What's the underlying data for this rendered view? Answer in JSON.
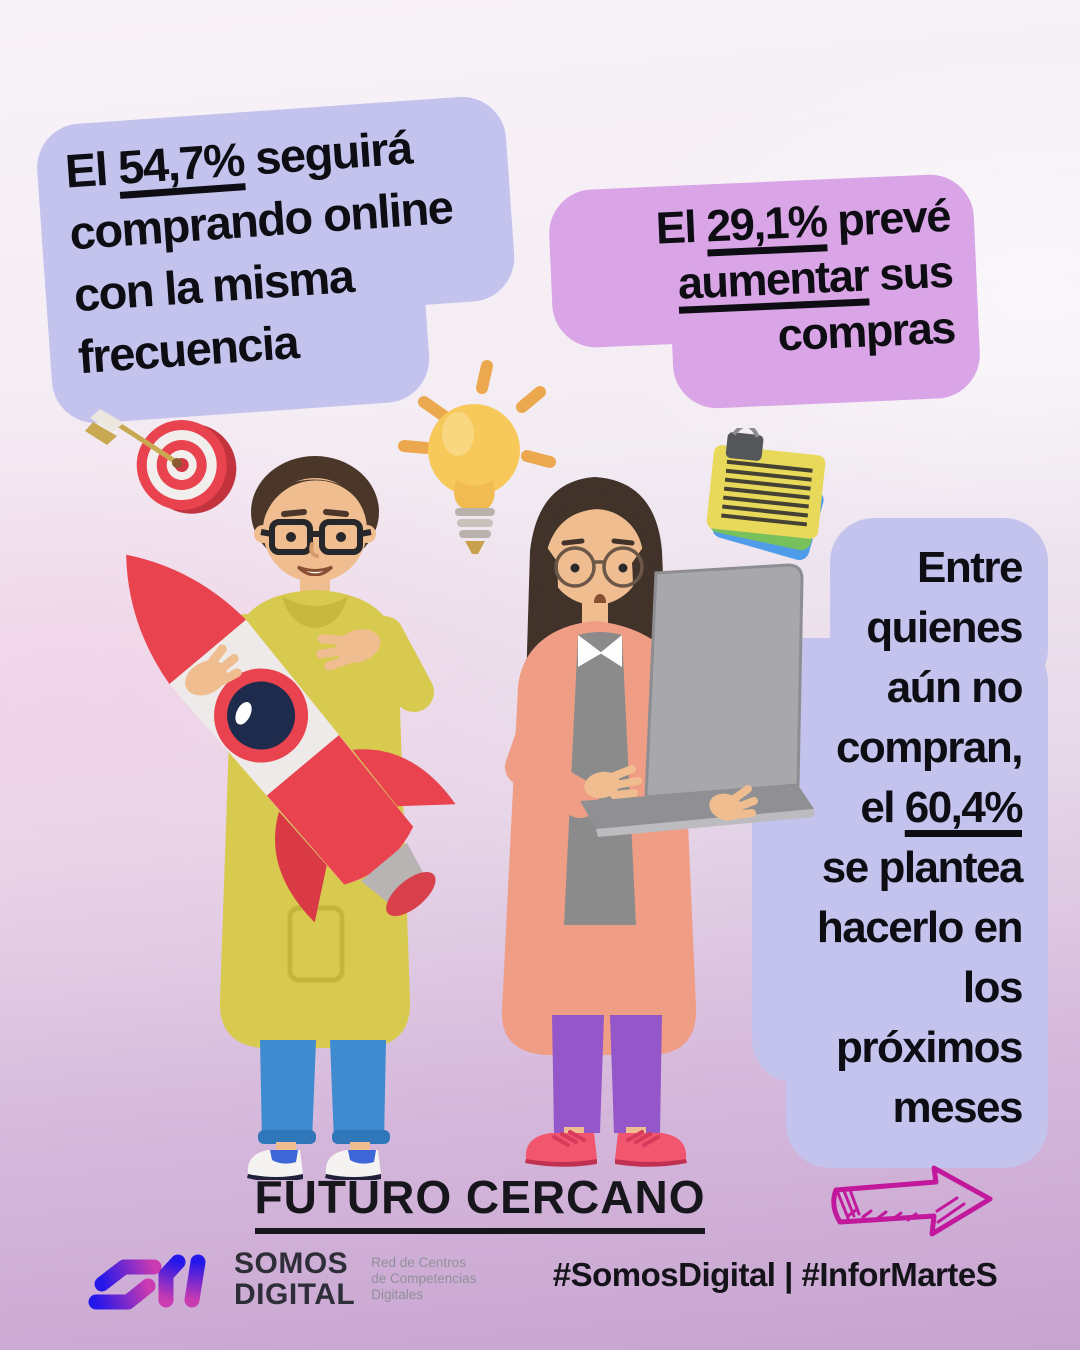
{
  "poster": {
    "bubbles": {
      "b1": {
        "lines": [
          [
            {
              "t": "El "
            },
            {
              "t": "54,7%",
              "u": true
            },
            {
              "t": " seguirá"
            }
          ],
          [
            {
              "t": "comprando online"
            }
          ],
          [
            {
              "t": "con la misma"
            }
          ],
          [
            {
              "t": "frecuencia"
            }
          ]
        ]
      },
      "b2": {
        "lines": [
          [
            {
              "t": "El "
            },
            {
              "t": "29,1%",
              "u": true
            },
            {
              "t": " prevé"
            }
          ],
          [
            {
              "t": "aumentar",
              "u": true
            },
            {
              "t": " sus"
            }
          ],
          [
            {
              "t": "compras"
            }
          ]
        ]
      },
      "b3": {
        "lines": [
          [
            {
              "t": "Entre"
            }
          ],
          [
            {
              "t": "quienes"
            }
          ],
          [
            {
              "t": "aún no"
            }
          ],
          [
            {
              "t": "compran,"
            }
          ],
          [
            {
              "t": "el "
            },
            {
              "t": "60,4%",
              "u": true
            }
          ],
          [
            {
              "t": "se plantea"
            }
          ],
          [
            {
              "t": "hacerlo en"
            }
          ],
          [
            {
              "t": "los"
            }
          ],
          [
            {
              "t": "próximos"
            }
          ],
          [
            {
              "t": "meses"
            }
          ]
        ]
      }
    },
    "title": "FUTURO CERCANO",
    "footer": {
      "brand_line1": "SOMOS",
      "brand_line2": "DIGITAL",
      "tagline": [
        "Red de Centros",
        "de Competencias",
        "Digitales"
      ],
      "hashtags": "#SomosDigital | #InforMarteS"
    },
    "icons": {
      "target": "target-with-dart",
      "lightbulb": "glowing-lightbulb",
      "clipboard": "notes-clipboard",
      "arrow": "hand-drawn-arrow",
      "logomark": "somos-digital-logomark"
    },
    "illustrations": {
      "man": "man-holding-rocket",
      "woman": "woman-holding-laptop"
    },
    "colors": {
      "bubble_periwinkle": "#c3c3ee",
      "bubble_orchid": "#d9a5e6",
      "text_black": "#0e0d13",
      "background_top": "#f8f3f8",
      "background_bottom": "#c7a4d0",
      "arrow_magenta": "#c2189c",
      "logo_blue": "#2417ea",
      "logo_magenta": "#cb3bb0",
      "rocket_red": "#e8434e",
      "hoodie_yellow": "#d8c94f",
      "jeans_blue": "#3e8bd0",
      "jacket_salmon": "#f09d86",
      "pants_purple": "#9457c9",
      "bulb_yellow": "#f6c95a"
    }
  }
}
